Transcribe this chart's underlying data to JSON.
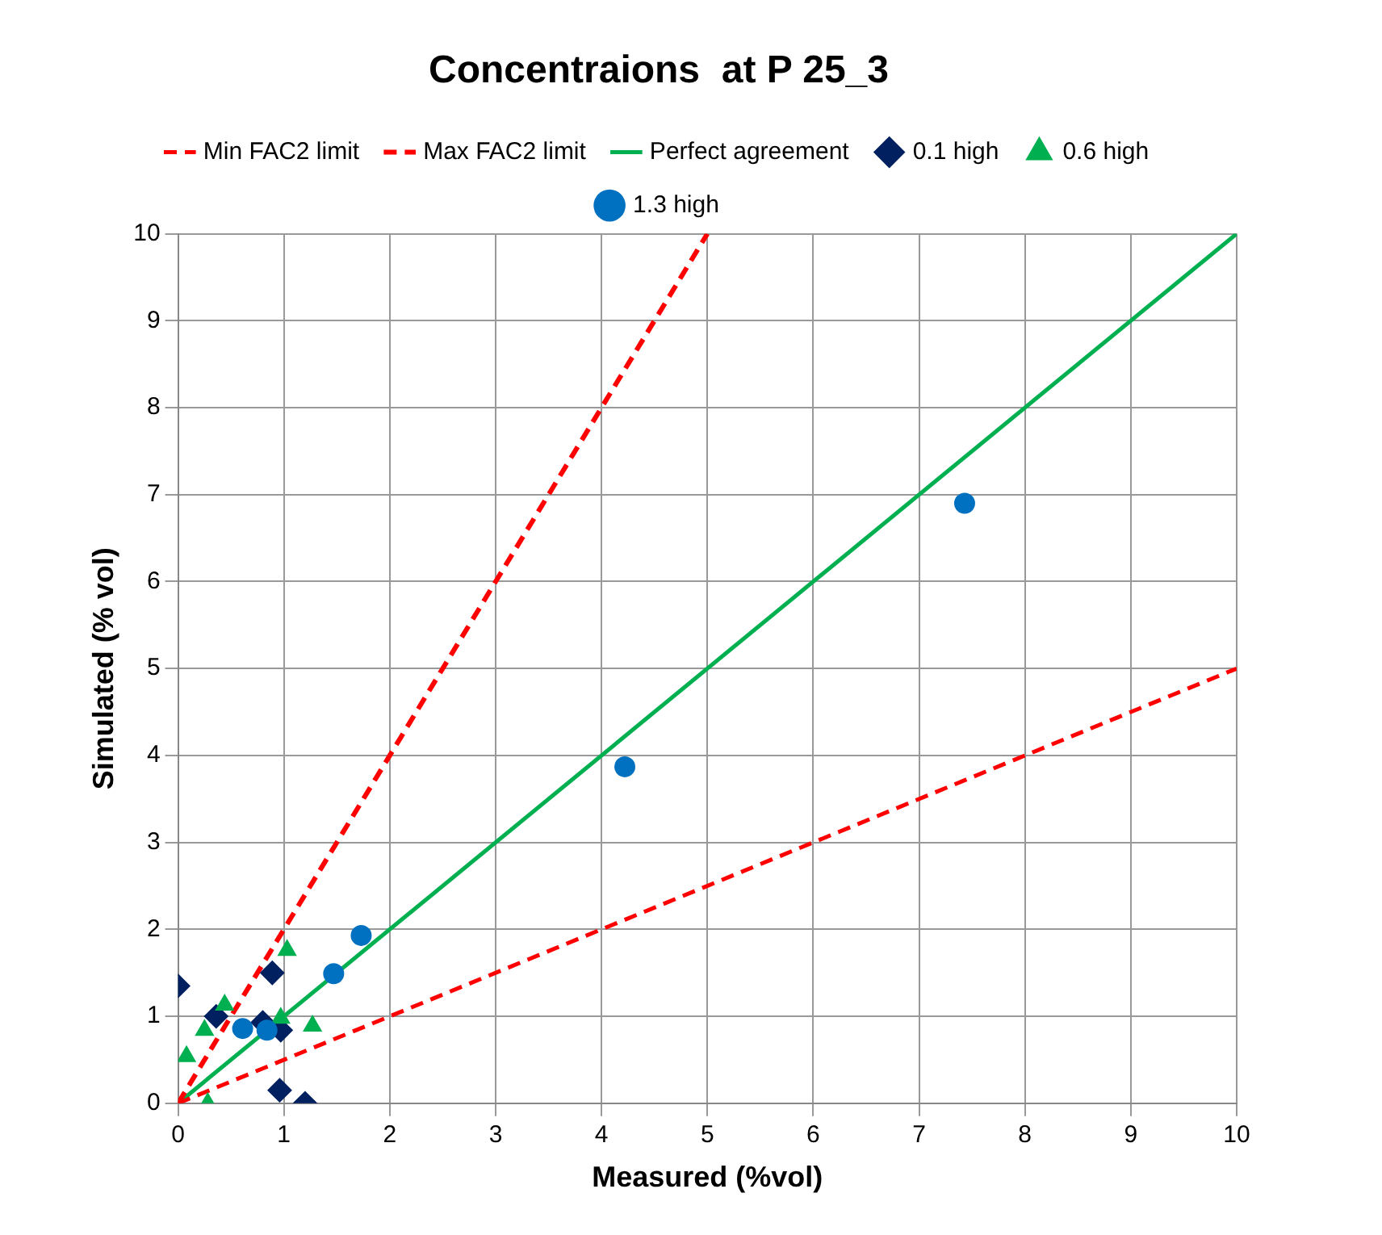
{
  "chart_data": {
    "type": "scatter",
    "title": "Concentraions  at P 25_3",
    "xlabel": "Measured (%vol)",
    "ylabel": "Simulated (% vol)",
    "xlim": [
      0,
      10
    ],
    "ylim": [
      0,
      10
    ],
    "xticks": [
      0,
      1,
      2,
      3,
      4,
      5,
      6,
      7,
      8,
      9,
      10
    ],
    "yticks": [
      0,
      1,
      2,
      3,
      4,
      5,
      6,
      7,
      8,
      9,
      10
    ],
    "grid": true,
    "legend": "top",
    "series": [
      {
        "name": "Min FAC2 limit",
        "type": "line",
        "line_style": "dashed",
        "marker": "none",
        "color": "#ff0000",
        "x": [
          0,
          10
        ],
        "values": [
          0,
          5
        ]
      },
      {
        "name": "Max FAC2 limit",
        "type": "line",
        "line_style": "dashed",
        "marker": "none",
        "color": "#ff0000",
        "x": [
          0,
          5
        ],
        "values": [
          0,
          10
        ]
      },
      {
        "name": "Perfect agreement",
        "type": "line",
        "line_style": "solid",
        "marker": "none",
        "color": "#00b050",
        "x": [
          0,
          10
        ],
        "values": [
          0,
          10
        ]
      },
      {
        "name": "0.1 high",
        "marker": "diamond",
        "color": "#002060",
        "x": [
          0,
          0.89,
          0.36,
          0.8,
          0.97,
          0.96,
          1.2
        ],
        "values": [
          1.35,
          1.5,
          1.0,
          0.93,
          0.84,
          0.15,
          0
        ]
      },
      {
        "name": "0.6 high",
        "marker": "triangle",
        "color": "#00b050",
        "x": [
          1.03,
          0.44,
          0.25,
          0.08,
          0.28,
          0.97,
          1.27
        ],
        "values": [
          1.76,
          1.13,
          0.84,
          0.54,
          0,
          0.98,
          0.89
        ]
      },
      {
        "name": "1.3 high",
        "marker": "circle",
        "color": "#0070c0",
        "x": [
          0.61,
          0.84,
          1.47,
          1.73,
          4.22,
          7.43
        ],
        "values": [
          0.86,
          0.84,
          1.49,
          1.93,
          3.87,
          6.9
        ]
      }
    ]
  }
}
